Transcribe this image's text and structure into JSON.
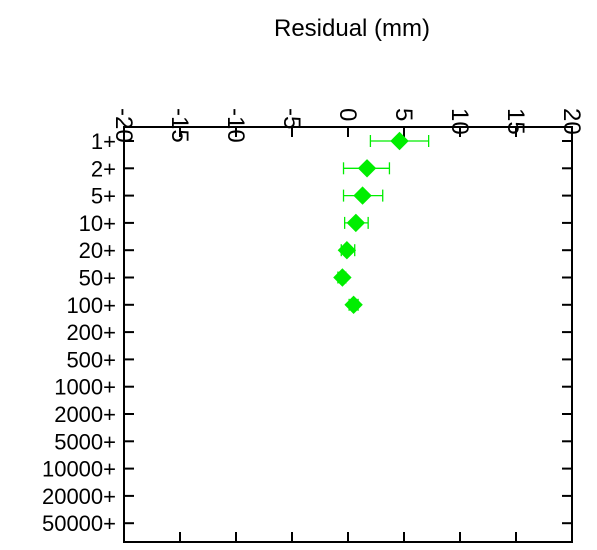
{
  "chart_data": {
    "type": "scatter",
    "xlabel": "Residual (mm)",
    "ylabel": "",
    "xlim": [
      -20,
      20
    ],
    "x_ticks": [
      -20,
      -15,
      -10,
      -5,
      0,
      5,
      10,
      15,
      20
    ],
    "x_tick_labels": [
      "-20",
      "-15",
      "-10",
      "-5",
      "0",
      "5",
      "10",
      "15",
      "20"
    ],
    "categories": [
      "1+",
      "2+",
      "5+",
      "10+",
      "20+",
      "50+",
      "100+",
      "200+",
      "500+",
      "1000+",
      "2000+",
      "5000+",
      "10000+",
      "20000+",
      "50000+"
    ],
    "grid": false,
    "marker_color": "#00ee00",
    "series": [
      {
        "points": [
          {
            "category": "1+",
            "x": 4.6,
            "xerr_low": 2.0,
            "xerr_high": 7.2
          },
          {
            "category": "2+",
            "x": 1.7,
            "xerr_low": -0.4,
            "xerr_high": 3.7
          },
          {
            "category": "5+",
            "x": 1.3,
            "xerr_low": -0.4,
            "xerr_high": 3.1
          },
          {
            "category": "10+",
            "x": 0.7,
            "xerr_low": -0.3,
            "xerr_high": 1.8
          },
          {
            "category": "20+",
            "x": -0.1,
            "xerr_low": -0.6,
            "xerr_high": 0.6
          },
          {
            "category": "50+",
            "x": -0.5,
            "xerr_low": -0.9,
            "xerr_high": -0.2
          },
          {
            "category": "100+",
            "x": 0.5,
            "xerr_low": 0.1,
            "xerr_high": 0.9
          }
        ]
      }
    ]
  }
}
